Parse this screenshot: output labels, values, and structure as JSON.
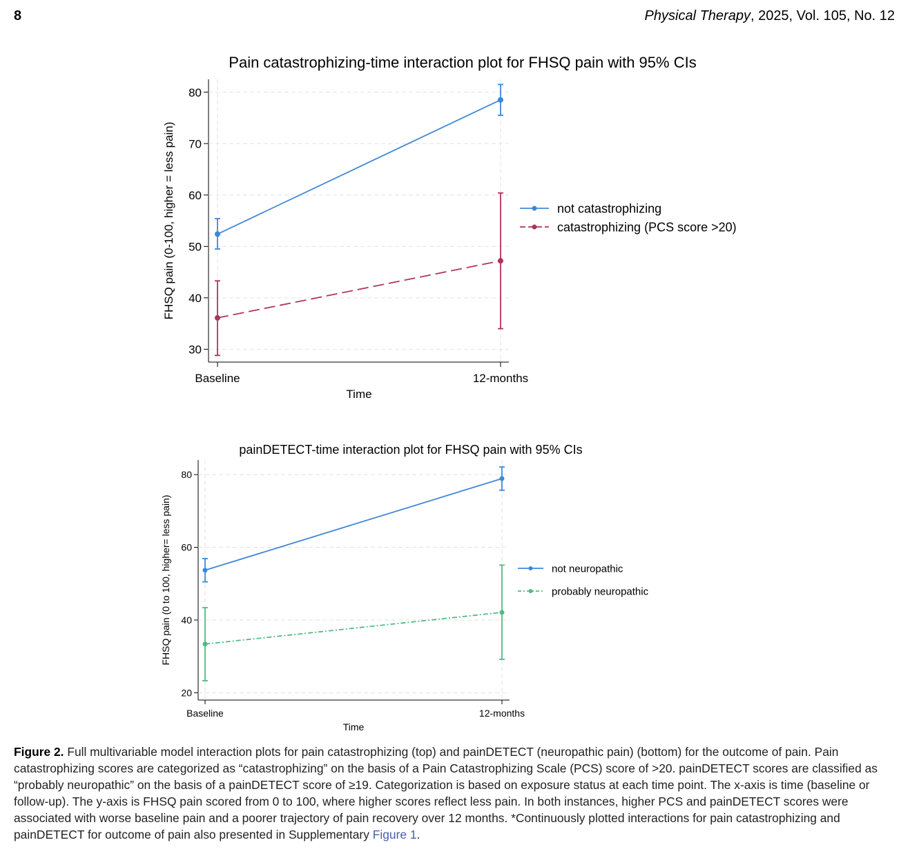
{
  "header": {
    "page_number": "8",
    "journal": "Physical Therapy",
    "citation": ", 2025, Vol. 105, No. 12"
  },
  "colors": {
    "blue": "#3f87d9",
    "crimson": "#b03458",
    "green": "#4fbb83",
    "grid": "#e2e2e2"
  },
  "chart_data": [
    {
      "type": "line",
      "title": "Pain catastrophizing-time interaction plot for FHSQ pain with 95% CIs",
      "xlabel": "Time",
      "ylabel": "FHSQ pain (0-100, higher = less pain)",
      "categories": [
        "Baseline",
        "12-months"
      ],
      "ylim": [
        27.5,
        82.5
      ],
      "yticks": [
        "30",
        "40",
        "50",
        "60",
        "70",
        "80"
      ],
      "grid": true,
      "legend_position": "right",
      "series": [
        {
          "name": "not catastrophizing",
          "color": "#3f87d9",
          "dash": "solid",
          "values": [
            52.4,
            78.5
          ],
          "ci_low": [
            49.5,
            75.5
          ],
          "ci_high": [
            55.4,
            81.5
          ]
        },
        {
          "name": "catastrophizing (PCS score >20)",
          "color": "#b03458",
          "dash": "dash",
          "values": [
            36.1,
            47.2
          ],
          "ci_low": [
            28.8,
            34.0
          ],
          "ci_high": [
            43.3,
            60.4
          ]
        }
      ]
    },
    {
      "type": "line",
      "title": "painDETECT-time interaction plot for FHSQ pain with 95% CIs",
      "xlabel": "Time",
      "ylabel": "FHSQ pain (0 to 100, higher= less pain)",
      "categories": [
        "Baseline",
        "12-months"
      ],
      "ylim": [
        18,
        84
      ],
      "yticks": [
        "20",
        "40",
        "60",
        "80"
      ],
      "grid": true,
      "legend_position": "right",
      "series": [
        {
          "name": "not neuropathic",
          "color": "#3f87d9",
          "dash": "solid",
          "values": [
            53.7,
            78.9
          ],
          "ci_low": [
            50.5,
            75.7
          ],
          "ci_high": [
            56.9,
            82.1
          ]
        },
        {
          "name": "probably neuropathic",
          "color": "#4fbb83",
          "dash": "dashdot",
          "values": [
            33.4,
            42.1
          ],
          "ci_low": [
            23.3,
            29.2
          ],
          "ci_high": [
            43.4,
            55.1
          ]
        }
      ]
    }
  ],
  "caption": {
    "label": "Figure 2.",
    "text": " Full multivariable model interaction plots for pain catastrophizing (top) and painDETECT (neuropathic pain) (bottom) for the outcome of pain. Pain catastrophizing scores are categorized as “catastrophizing” on the basis of a Pain Catastrophizing Scale (PCS) score of >20. painDETECT scores are classified as “probably neuropathic” on the basis of a painDETECT score of ≥19. Categorization is based on exposure status at each time point. The x-axis is time (baseline or follow-up). The y-axis is FHSQ pain scored from 0 to 100, where higher scores reflect less pain. In both instances, higher PCS and painDETECT scores were associated with worse baseline pain and a poorer trajectory of pain recovery over 12 months. *Continuously plotted interactions for pain catastrophizing and painDETECT for outcome of pain also presented in Supplementary ",
    "link": "Figure 1",
    "end": "."
  }
}
